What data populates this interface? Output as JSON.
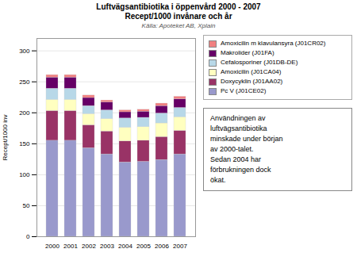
{
  "chart_data": {
    "type": "bar",
    "stacked": true,
    "title": "Luftvägsantibiotika i öppenvård 2000 - 2007",
    "subtitle": "Recept/1000 invånare och år",
    "annotations": [
      "Källa: Apoteket AB, Xplain",
      "Användningen av\nluftvägsantibiotika\nminskade under början\nav 2000-talet.\nSedan 2004 har\nförbrukningen dock\nökat."
    ],
    "ylabel": "Recept/1000 inv",
    "categories": [
      "2000",
      "2001",
      "2002",
      "2003",
      "2004",
      "2005",
      "2006",
      "2007"
    ],
    "series": [
      {
        "name": "Pc V (J01CE02)",
        "color": "#9999cc",
        "values": [
          155,
          155,
          143,
          133,
          120,
          121,
          124,
          133
        ]
      },
      {
        "name": "Doxycyklin (J01AA02)",
        "color": "#993366",
        "values": [
          48,
          48,
          37,
          37,
          34,
          34,
          37,
          38
        ]
      },
      {
        "name": "Amoxicilin (J01CA04)",
        "color": "#ffffc0",
        "values": [
          18,
          18,
          18,
          20,
          22,
          22,
          22,
          22
        ]
      },
      {
        "name": "Cefalosporiner (J01DB-DE)",
        "color": "#b8d8e8",
        "values": [
          18,
          18,
          13,
          14,
          15,
          15,
          16,
          15
        ]
      },
      {
        "name": "Makrolider (J01FA)",
        "color": "#660066",
        "values": [
          18,
          18,
          13,
          13,
          10,
          10,
          12,
          14
        ]
      },
      {
        "name": "Amoxicilin m klavulansyra (J01CR02)",
        "color": "#f08080",
        "values": [
          4,
          4,
          4,
          3,
          3,
          3,
          4,
          4
        ]
      }
    ],
    "ylim": [
      0,
      320
    ],
    "yticks": [
      0,
      50,
      100,
      150,
      200,
      250,
      300
    ],
    "grid": true,
    "legend": "upper right"
  }
}
